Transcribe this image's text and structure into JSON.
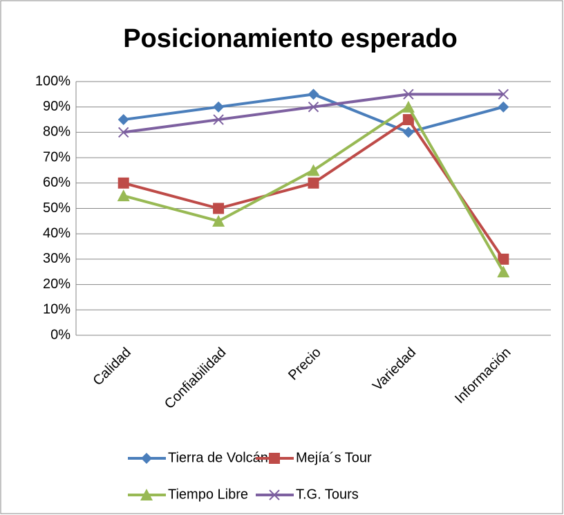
{
  "chart_data": {
    "type": "line",
    "title": "Posicionamiento esperado",
    "categories": [
      "Calidad",
      "Confiabilidad",
      "Precio",
      "Variedad",
      "Información"
    ],
    "series": [
      {
        "name": "Tierra de Volcán",
        "color": "#4a7ebb",
        "marker": "diamond",
        "values": [
          85,
          90,
          95,
          80,
          90
        ]
      },
      {
        "name": "Mejía´s Tour",
        "color": "#be4b48",
        "marker": "square",
        "values": [
          60,
          50,
          60,
          85,
          30
        ]
      },
      {
        "name": "Tiempo Libre",
        "color": "#98b954",
        "marker": "triangle",
        "values": [
          55,
          45,
          65,
          90,
          25
        ]
      },
      {
        "name": "T.G. Tours",
        "color": "#7d60a0",
        "marker": "x",
        "values": [
          80,
          85,
          90,
          95,
          95
        ]
      }
    ],
    "ylim": [
      0,
      100
    ],
    "yticks": [
      {
        "value": 0,
        "label": "0%"
      },
      {
        "value": 10,
        "label": "10%"
      },
      {
        "value": 20,
        "label": "20%"
      },
      {
        "value": 30,
        "label": "30%"
      },
      {
        "value": 40,
        "label": "40%"
      },
      {
        "value": 50,
        "label": "50%"
      },
      {
        "value": 60,
        "label": "60%"
      },
      {
        "value": 70,
        "label": "70%"
      },
      {
        "value": 80,
        "label": "80%"
      },
      {
        "value": 90,
        "label": "90%"
      },
      {
        "value": 100,
        "label": "100%"
      }
    ],
    "grid": true,
    "legend": "bottom"
  }
}
